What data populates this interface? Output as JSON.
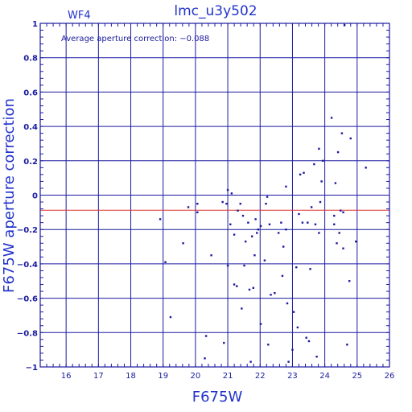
{
  "chart_data": {
    "type": "scatter",
    "title": "lmc_u3y502",
    "panel_label": "WF4",
    "annotation": "Average aperture correction: −0.088",
    "xlabel": "F675W",
    "ylabel": "F675W aperture correction",
    "xlim": [
      15.2,
      26.0
    ],
    "ylim": [
      -1.0,
      1.0
    ],
    "xticks": [
      "16",
      "17",
      "18",
      "19",
      "20",
      "21",
      "22",
      "23",
      "24",
      "25",
      "26"
    ],
    "yticks": [
      "−1",
      "−0.8",
      "−0.6",
      "−0.4",
      "−0.2",
      "0",
      "0.2",
      "0.4",
      "0.6",
      "0.8",
      "1"
    ],
    "grid": true,
    "reference_line": {
      "y": -0.088,
      "color": "#e03030"
    },
    "colors": {
      "axes": "#1a1aa0",
      "grid": "#1a1aa0",
      "points": "#1a1aa0",
      "text": "#2233cc"
    },
    "points": [
      [
        18.91,
        -0.14
      ],
      [
        19.07,
        -0.39
      ],
      [
        19.23,
        -0.71
      ],
      [
        19.62,
        -0.28
      ],
      [
        19.78,
        -0.07
      ],
      [
        20.06,
        -0.05
      ],
      [
        20.06,
        -0.1
      ],
      [
        20.29,
        -0.95
      ],
      [
        20.33,
        -0.82
      ],
      [
        20.49,
        -0.35
      ],
      [
        20.84,
        -0.04
      ],
      [
        20.96,
        -0.05
      ],
      [
        20.88,
        -0.86
      ],
      [
        21.0,
        0.03
      ],
      [
        21.0,
        -0.41
      ],
      [
        21.12,
        0.01
      ],
      [
        21.08,
        -0.17
      ],
      [
        21.2,
        -0.23
      ],
      [
        21.2,
        -0.52
      ],
      [
        21.28,
        -0.53
      ],
      [
        21.31,
        -0.09
      ],
      [
        21.39,
        -0.05
      ],
      [
        21.43,
        -0.66
      ],
      [
        21.47,
        -0.12
      ],
      [
        21.51,
        -0.41
      ],
      [
        21.55,
        -0.27
      ],
      [
        21.63,
        -0.16
      ],
      [
        21.67,
        -0.55
      ],
      [
        21.71,
        -0.97
      ],
      [
        21.75,
        -0.24
      ],
      [
        21.79,
        -0.54
      ],
      [
        21.83,
        -0.35
      ],
      [
        21.86,
        -0.14
      ],
      [
        21.9,
        -0.22
      ],
      [
        21.94,
        -0.2
      ],
      [
        22.02,
        -0.75
      ],
      [
        22.02,
        -0.18
      ],
      [
        22.14,
        -0.38
      ],
      [
        22.18,
        -0.05
      ],
      [
        22.22,
        -0.01
      ],
      [
        22.25,
        -0.87
      ],
      [
        22.29,
        -0.17
      ],
      [
        22.33,
        -0.58
      ],
      [
        22.45,
        -0.57
      ],
      [
        22.57,
        -0.22
      ],
      [
        22.65,
        -0.16
      ],
      [
        22.69,
        -0.47
      ],
      [
        22.72,
        -0.3
      ],
      [
        22.8,
        0.05
      ],
      [
        22.8,
        -0.2
      ],
      [
        22.84,
        -0.63
      ],
      [
        22.88,
        -0.97
      ],
      [
        23.0,
        -0.9
      ],
      [
        23.04,
        -0.68
      ],
      [
        23.12,
        -0.42
      ],
      [
        23.16,
        -0.77
      ],
      [
        23.2,
        -0.11
      ],
      [
        23.24,
        0.12
      ],
      [
        23.31,
        -0.16
      ],
      [
        23.35,
        0.13
      ],
      [
        23.43,
        -0.83
      ],
      [
        23.47,
        -0.16
      ],
      [
        23.51,
        -0.85
      ],
      [
        23.55,
        -0.43
      ],
      [
        23.59,
        -0.07
      ],
      [
        23.67,
        0.18
      ],
      [
        23.71,
        -0.17
      ],
      [
        23.75,
        -0.94
      ],
      [
        23.82,
        0.27
      ],
      [
        23.82,
        -0.22
      ],
      [
        23.86,
        -0.04
      ],
      [
        23.9,
        0.08
      ],
      [
        23.94,
        0.2
      ],
      [
        24.21,
        0.45
      ],
      [
        24.29,
        -0.12
      ],
      [
        24.29,
        -0.17
      ],
      [
        24.33,
        0.07
      ],
      [
        24.37,
        -0.28
      ],
      [
        24.41,
        0.25
      ],
      [
        24.45,
        -0.22
      ],
      [
        24.49,
        -0.09
      ],
      [
        24.53,
        0.36
      ],
      [
        24.57,
        -0.1
      ],
      [
        24.57,
        -0.31
      ],
      [
        24.61,
        0.99
      ],
      [
        24.69,
        -0.87
      ],
      [
        24.76,
        -0.5
      ],
      [
        24.8,
        0.33
      ],
      [
        24.96,
        -0.27
      ],
      [
        25.27,
        0.16
      ]
    ]
  }
}
